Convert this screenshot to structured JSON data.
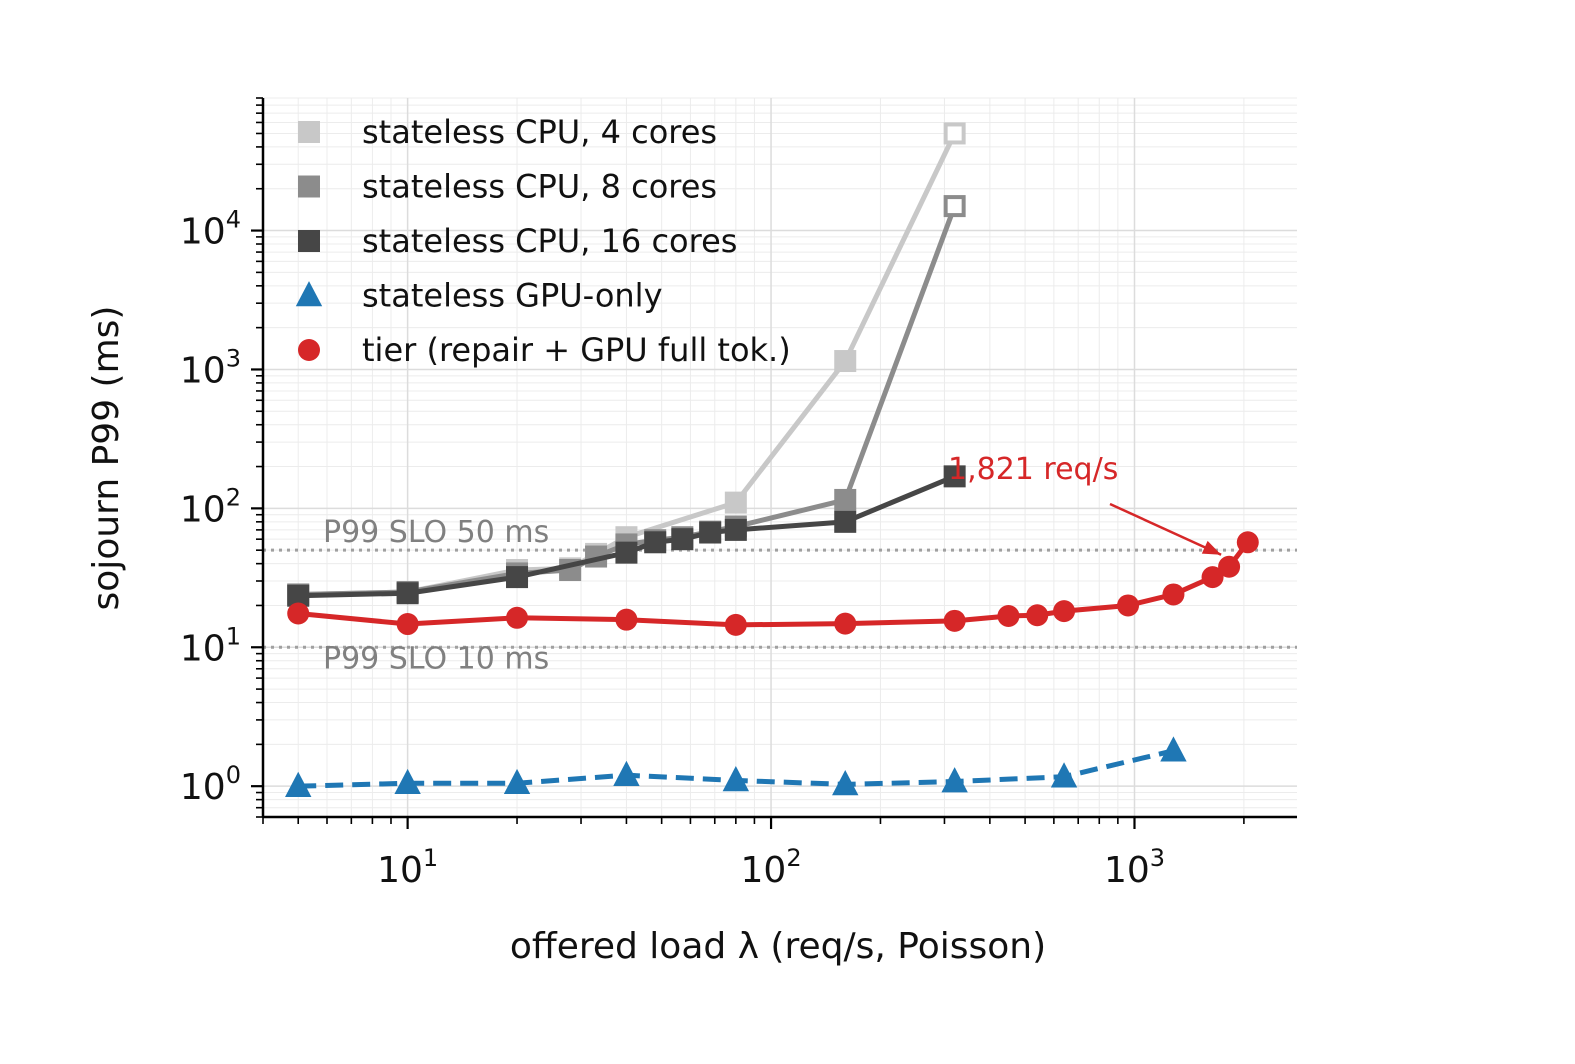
{
  "chart_data": {
    "type": "line",
    "xlabel": "offered load λ (req/s, Poisson)",
    "ylabel": "sojourn P99 (ms)",
    "xscale": "log",
    "yscale": "log",
    "xlim": [
      4,
      2800
    ],
    "ylim": [
      0.6,
      90000
    ],
    "x_ticks": [
      {
        "base": "10",
        "exp": "1",
        "value": 10
      },
      {
        "base": "10",
        "exp": "2",
        "value": 100
      },
      {
        "base": "10",
        "exp": "3",
        "value": 1000
      }
    ],
    "y_ticks": [
      {
        "base": "10",
        "exp": "0",
        "value": 1
      },
      {
        "base": "10",
        "exp": "1",
        "value": 10
      },
      {
        "base": "10",
        "exp": "2",
        "value": 100
      },
      {
        "base": "10",
        "exp": "3",
        "value": 1000
      },
      {
        "base": "10",
        "exp": "4",
        "value": 10000
      }
    ],
    "grid": true,
    "legend_position": "top-left",
    "series": [
      {
        "name": "stateless CPU, 4 cores",
        "color": "#c8c8c8",
        "marker": "square",
        "linestyle": "solid",
        "x": [
          5,
          10,
          20,
          28,
          33,
          40,
          80,
          160,
          320
        ],
        "y": [
          24,
          25,
          36,
          37,
          47,
          62,
          110,
          1150,
          50000
        ],
        "hollow_last": true
      },
      {
        "name": "stateless CPU, 8 cores",
        "color": "#8c8c8c",
        "marker": "square",
        "linestyle": "solid",
        "x": [
          5,
          10,
          20,
          28,
          33,
          40,
          48,
          57,
          68,
          80,
          160,
          320
        ],
        "y": [
          24,
          25,
          34,
          36,
          45,
          55,
          59,
          62,
          68,
          74,
          115,
          15000
        ],
        "hollow_last": true
      },
      {
        "name": "stateless CPU, 16 cores",
        "color": "#464646",
        "marker": "square",
        "linestyle": "solid",
        "x": [
          5,
          10,
          20,
          40,
          48,
          57,
          68,
          80,
          160,
          320
        ],
        "y": [
          23.5,
          24.5,
          32,
          48,
          57,
          60,
          67,
          70,
          80,
          170
        ],
        "hollow_last": false
      },
      {
        "name": "stateless GPU-only",
        "color": "#1f77b4",
        "marker": "triangle",
        "linestyle": "dashed",
        "x": [
          5,
          10,
          20,
          40,
          80,
          160,
          320,
          640,
          1280
        ],
        "y": [
          1.0,
          1.05,
          1.05,
          1.2,
          1.1,
          1.03,
          1.08,
          1.17,
          1.8
        ],
        "hollow_last": false
      },
      {
        "name": "tier (repair + GPU full tok.)",
        "color": "#d62728",
        "marker": "circle",
        "linestyle": "solid",
        "x": [
          5,
          10,
          20,
          40,
          80,
          160,
          320,
          450,
          540,
          640,
          960,
          1280,
          1640,
          1821,
          2050
        ],
        "y": [
          17.5,
          14.7,
          16.3,
          15.8,
          14.5,
          14.8,
          15.5,
          16.8,
          17.0,
          18.2,
          20.0,
          24.0,
          32.0,
          38.0,
          57.0
        ],
        "hollow_last": false
      }
    ],
    "reference_lines": [
      {
        "y": 50,
        "label": "P99 SLO 50 ms",
        "color": "#a0a0a0",
        "linestyle": "dotted"
      },
      {
        "y": 10,
        "label": "P99 SLO 10 ms",
        "color": "#a0a0a0",
        "linestyle": "dotted"
      }
    ],
    "annotation": {
      "text": "1,821 req/s",
      "color": "#d62728",
      "target_x": 1821,
      "target_y": 38
    }
  }
}
